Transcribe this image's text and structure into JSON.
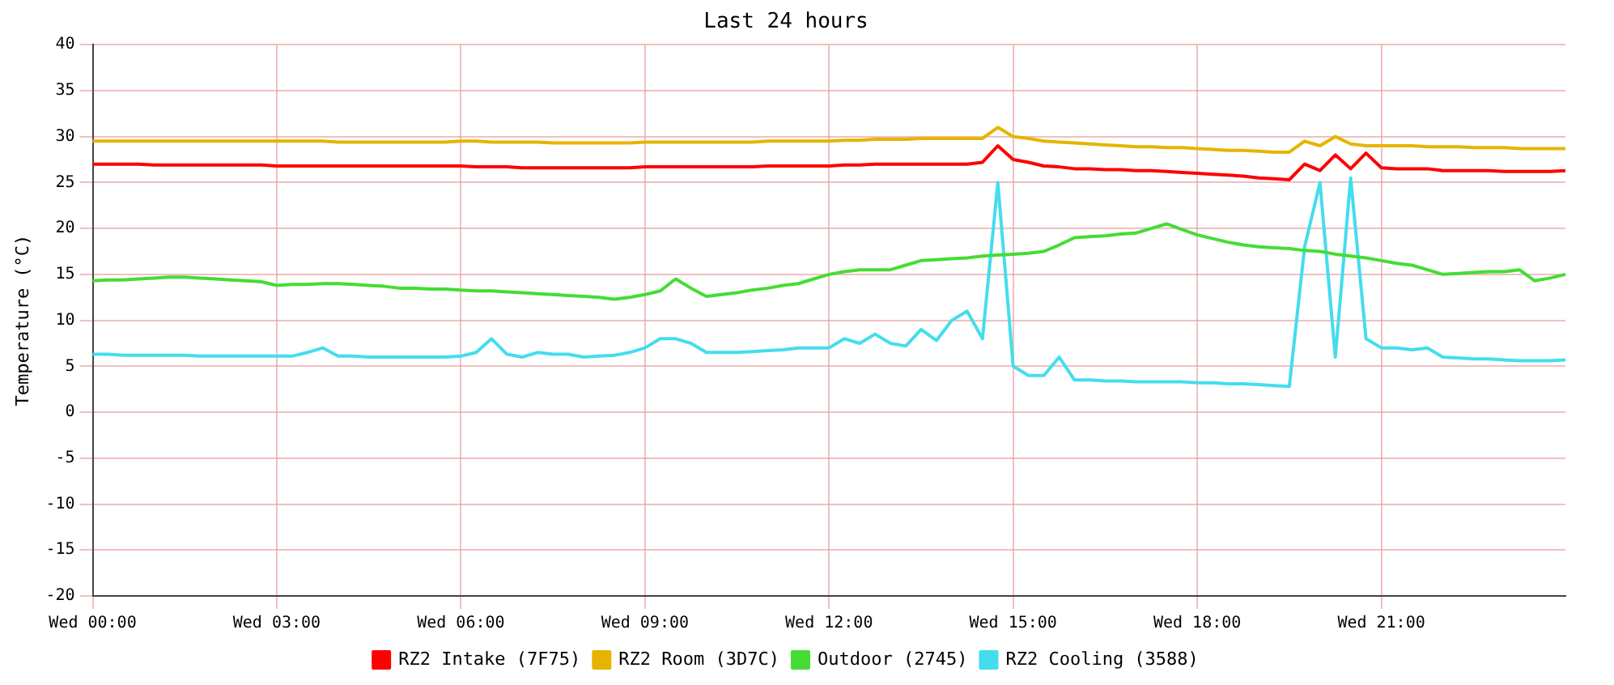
{
  "chart_data": {
    "type": "line",
    "title": "Last 24 hours",
    "ylabel": "Temperature (°C)",
    "categories": [
      "Wed 00:00",
      null,
      null,
      null,
      null,
      null,
      null,
      null,
      null,
      null,
      null,
      null,
      "Wed 03:00",
      null,
      null,
      null,
      null,
      null,
      null,
      null,
      null,
      null,
      null,
      null,
      "Wed 06:00",
      null,
      null,
      null,
      null,
      null,
      null,
      null,
      null,
      null,
      null,
      null,
      "Wed 09:00",
      null,
      null,
      null,
      null,
      null,
      null,
      null,
      null,
      null,
      null,
      null,
      "Wed 12:00",
      null,
      null,
      null,
      null,
      null,
      null,
      null,
      null,
      null,
      null,
      null,
      "Wed 15:00",
      null,
      null,
      null,
      null,
      null,
      null,
      null,
      null,
      null,
      null,
      null,
      "Wed 18:00",
      null,
      null,
      null,
      null,
      null,
      null,
      null,
      null,
      null,
      null,
      null,
      "Wed 21:00",
      null,
      null,
      null,
      null,
      null,
      null,
      null,
      null,
      null,
      null,
      null,
      null
    ],
    "ylim": [
      -20,
      40
    ],
    "yticks": [
      -20,
      -15,
      -10,
      -5,
      0,
      5,
      10,
      15,
      20,
      25,
      30,
      35,
      40
    ],
    "grid": true,
    "legend": "bottom",
    "marker": "none",
    "line_style": "solid",
    "series": [
      {
        "name": "RZ2 Intake (7F75)",
        "color": "#ff0000",
        "values": [
          27,
          27,
          27,
          27,
          26.9,
          26.9,
          26.9,
          26.9,
          26.9,
          26.9,
          26.9,
          26.9,
          26.8,
          26.8,
          26.8,
          26.8,
          26.8,
          26.8,
          26.8,
          26.8,
          26.8,
          26.8,
          26.8,
          26.8,
          26.8,
          26.7,
          26.7,
          26.7,
          26.6,
          26.6,
          26.6,
          26.6,
          26.6,
          26.6,
          26.6,
          26.6,
          26.7,
          26.7,
          26.7,
          26.7,
          26.7,
          26.7,
          26.7,
          26.7,
          26.8,
          26.8,
          26.8,
          26.8,
          26.8,
          26.9,
          26.9,
          27,
          27,
          27,
          27,
          27,
          27,
          27,
          27.2,
          29,
          27.5,
          27.2,
          26.8,
          26.7,
          26.5,
          26.5,
          26.4,
          26.4,
          26.3,
          26.3,
          26.2,
          26.1,
          26,
          25.9,
          25.8,
          25.7,
          25.5,
          25.4,
          25.3,
          27,
          26.3,
          28,
          26.5,
          28.2,
          26.6,
          26.5,
          26.5,
          26.5,
          26.3,
          26.3,
          26.3,
          26.3,
          26.2,
          26.2,
          26.2,
          26.2,
          26.3
        ]
      },
      {
        "name": "RZ2 Room (3D7C)",
        "color": "#e6b400",
        "values": [
          29.5,
          29.5,
          29.5,
          29.5,
          29.5,
          29.5,
          29.5,
          29.5,
          29.5,
          29.5,
          29.5,
          29.5,
          29.5,
          29.5,
          29.5,
          29.5,
          29.4,
          29.4,
          29.4,
          29.4,
          29.4,
          29.4,
          29.4,
          29.4,
          29.5,
          29.5,
          29.4,
          29.4,
          29.4,
          29.4,
          29.3,
          29.3,
          29.3,
          29.3,
          29.3,
          29.3,
          29.4,
          29.4,
          29.4,
          29.4,
          29.4,
          29.4,
          29.4,
          29.4,
          29.5,
          29.5,
          29.5,
          29.5,
          29.5,
          29.6,
          29.6,
          29.7,
          29.7,
          29.7,
          29.8,
          29.8,
          29.8,
          29.8,
          29.8,
          31,
          30,
          29.8,
          29.5,
          29.4,
          29.3,
          29.2,
          29.1,
          29,
          28.9,
          28.9,
          28.8,
          28.8,
          28.7,
          28.6,
          28.5,
          28.5,
          28.4,
          28.3,
          28.3,
          29.5,
          29,
          30,
          29.2,
          29,
          29,
          29,
          29,
          28.9,
          28.9,
          28.9,
          28.8,
          28.8,
          28.8,
          28.7,
          28.7,
          28.7,
          28.7
        ]
      },
      {
        "name": "Outdoor (2745)",
        "color": "#44dd33",
        "values": [
          14.3,
          14.4,
          14.4,
          14.5,
          14.6,
          14.7,
          14.7,
          14.6,
          14.5,
          14.4,
          14.3,
          14.2,
          13.8,
          13.9,
          13.9,
          14,
          14,
          13.9,
          13.8,
          13.7,
          13.5,
          13.5,
          13.4,
          13.4,
          13.3,
          13.2,
          13.2,
          13.1,
          13,
          12.9,
          12.8,
          12.7,
          12.6,
          12.5,
          12.3,
          12.5,
          12.8,
          13.2,
          14.5,
          13.5,
          12.6,
          12.8,
          13,
          13.3,
          13.5,
          13.8,
          14,
          14.5,
          15,
          15.3,
          15.5,
          15.5,
          15.5,
          16,
          16.5,
          16.6,
          16.7,
          16.8,
          17,
          17.1,
          17.2,
          17.3,
          17.5,
          18.2,
          19,
          19.1,
          19.2,
          19.4,
          19.5,
          20,
          20.5,
          19.9,
          19.3,
          18.9,
          18.5,
          18.2,
          18,
          17.9,
          17.8,
          17.6,
          17.5,
          17.2,
          17,
          16.8,
          16.5,
          16.2,
          16,
          15.5,
          15,
          15.1,
          15.2,
          15.3,
          15.3,
          15.5,
          14.3,
          14.6,
          15
        ]
      },
      {
        "name": "RZ2 Cooling (3588)",
        "color": "#44ddee",
        "values": [
          6.3,
          6.3,
          6.2,
          6.2,
          6.2,
          6.2,
          6.2,
          6.1,
          6.1,
          6.1,
          6.1,
          6.1,
          6.1,
          6.1,
          6.5,
          7,
          6.1,
          6.1,
          6,
          6,
          6,
          6,
          6,
          6,
          6.1,
          6.5,
          8,
          6.3,
          6,
          6.5,
          6.3,
          6.3,
          6,
          6.1,
          6.2,
          6.5,
          7,
          8,
          8,
          7.5,
          6.5,
          6.5,
          6.5,
          6.6,
          6.7,
          6.8,
          7,
          7,
          7,
          8,
          7.5,
          8.5,
          7.5,
          7.2,
          9,
          7.8,
          10,
          11,
          8,
          25,
          5,
          4,
          4,
          6,
          3.5,
          3.5,
          3.4,
          3.4,
          3.3,
          3.3,
          3.3,
          3.3,
          3.2,
          3.2,
          3.1,
          3.1,
          3,
          2.9,
          2.8,
          18,
          25,
          6,
          25.5,
          8,
          7,
          7,
          6.8,
          7,
          6,
          5.9,
          5.8,
          5.8,
          5.7,
          5.6,
          5.6,
          5.6,
          5.7
        ]
      }
    ]
  }
}
